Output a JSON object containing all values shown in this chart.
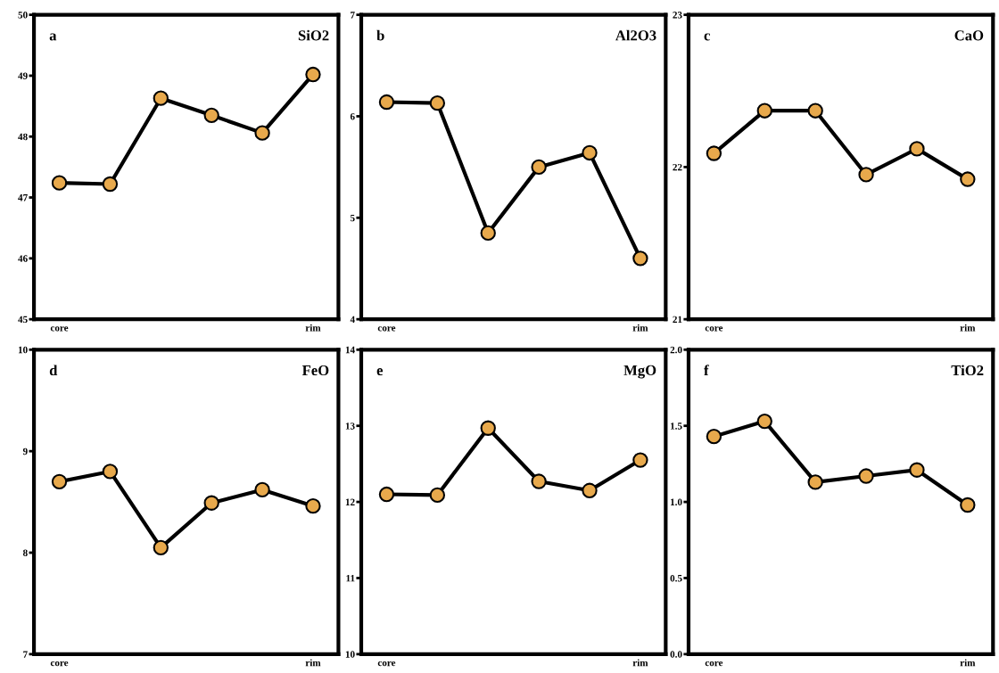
{
  "chart_data": [
    {
      "type": "line",
      "title": "SiO2",
      "annotations": [
        "a"
      ],
      "categories": [
        "core",
        null,
        null,
        null,
        null,
        "rim"
      ],
      "color": "#e8a94c",
      "marker": "circle",
      "ylim": [
        45,
        50
      ],
      "yticks": [
        45,
        46,
        47,
        48,
        49,
        50
      ],
      "values": [
        47.24,
        47.22,
        48.63,
        48.35,
        48.06,
        49.02
      ]
    },
    {
      "type": "line",
      "title": "Al2O3",
      "annotations": [
        "b"
      ],
      "categories": [
        "core",
        null,
        null,
        null,
        null,
        "rim"
      ],
      "color": "#e8a94c",
      "marker": "circle",
      "ylim": [
        4,
        7
      ],
      "yticks": [
        4,
        5,
        6,
        7
      ],
      "values": [
        6.14,
        6.13,
        4.85,
        5.5,
        5.64,
        4.6
      ]
    },
    {
      "type": "line",
      "title": "CaO",
      "annotations": [
        "c"
      ],
      "categories": [
        "core",
        null,
        null,
        null,
        null,
        "rim"
      ],
      "color": "#e8a94c",
      "marker": "circle",
      "ylim": [
        21,
        23
      ],
      "yticks": [
        21,
        22,
        23
      ],
      "values": [
        22.09,
        22.37,
        22.37,
        21.95,
        22.12,
        21.92
      ]
    },
    {
      "type": "line",
      "title": "FeO",
      "annotations": [
        "d"
      ],
      "categories": [
        "core",
        null,
        null,
        null,
        null,
        "rim"
      ],
      "color": "#e8a94c",
      "marker": "circle",
      "ylim": [
        7,
        10
      ],
      "yticks": [
        7,
        8,
        9,
        10
      ],
      "values": [
        8.7,
        8.8,
        8.05,
        8.49,
        8.62,
        8.46
      ]
    },
    {
      "type": "line",
      "title": "MgO",
      "annotations": [
        "e"
      ],
      "categories": [
        "core",
        null,
        null,
        null,
        null,
        "rim"
      ],
      "color": "#e8a94c",
      "marker": "circle",
      "ylim": [
        10,
        14
      ],
      "yticks": [
        10,
        11,
        12,
        13,
        14
      ],
      "values": [
        12.1,
        12.09,
        12.97,
        12.27,
        12.15,
        12.55
      ]
    },
    {
      "type": "line",
      "title": "TiO2",
      "annotations": [
        "f"
      ],
      "categories": [
        "core",
        null,
        null,
        null,
        null,
        "rim"
      ],
      "color": "#e8a94c",
      "marker": "circle",
      "ylim": [
        0.0,
        2.0
      ],
      "yticks": [
        {
          "value": 0,
          "label": "0.0"
        },
        {
          "value": 0.5,
          "label": "0.5"
        },
        {
          "value": 1,
          "label": "1.0"
        },
        {
          "value": 1.5,
          "label": "1.5"
        },
        {
          "value": 2,
          "label": "2.0"
        }
      ],
      "values": [
        1.43,
        1.53,
        1.13,
        1.17,
        1.21,
        0.98
      ]
    }
  ]
}
